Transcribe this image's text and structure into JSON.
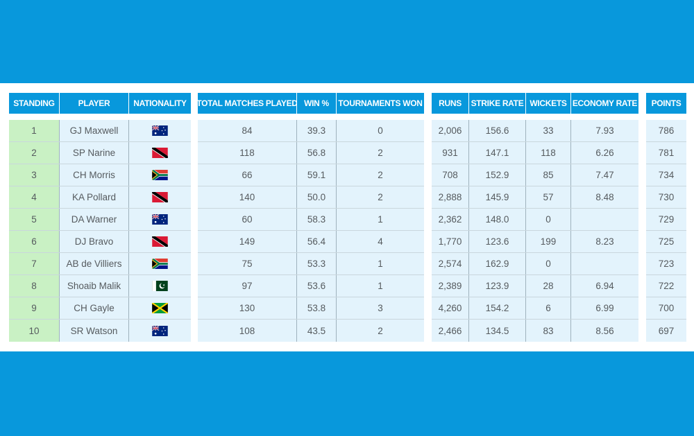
{
  "headers": {
    "standing": "STANDING",
    "player": "PLAYER",
    "nationality": "NATIONALITY",
    "matches": "TOTAL MATCHES PLAYED",
    "win": "WIN %",
    "tournaments": "TOURNAMENTS WON",
    "runs": "RUNS",
    "strike_rate": "STRIKE RATE",
    "wickets": "WICKETS",
    "economy": "ECONOMY RATE",
    "points": "POINTS"
  },
  "rows": [
    {
      "standing": "1",
      "player": "GJ Maxwell",
      "flag": "australia",
      "matches": "84",
      "win": "39.3",
      "tournaments": "0",
      "runs": "2,006",
      "strike_rate": "156.6",
      "wickets": "33",
      "economy": "7.93",
      "points": "786"
    },
    {
      "standing": "2",
      "player": "SP Narine",
      "flag": "trinidad-and-tobago",
      "matches": "118",
      "win": "56.8",
      "tournaments": "2",
      "runs": "931",
      "strike_rate": "147.1",
      "wickets": "118",
      "economy": "6.26",
      "points": "781"
    },
    {
      "standing": "3",
      "player": "CH Morris",
      "flag": "south-africa",
      "matches": "66",
      "win": "59.1",
      "tournaments": "2",
      "runs": "708",
      "strike_rate": "152.9",
      "wickets": "85",
      "economy": "7.47",
      "points": "734"
    },
    {
      "standing": "4",
      "player": "KA Pollard",
      "flag": "trinidad-and-tobago",
      "matches": "140",
      "win": "50.0",
      "tournaments": "2",
      "runs": "2,888",
      "strike_rate": "145.9",
      "wickets": "57",
      "economy": "8.48",
      "points": "730"
    },
    {
      "standing": "5",
      "player": "DA Warner",
      "flag": "australia",
      "matches": "60",
      "win": "58.3",
      "tournaments": "1",
      "runs": "2,362",
      "strike_rate": "148.0",
      "wickets": "0",
      "economy": "",
      "points": "729"
    },
    {
      "standing": "6",
      "player": "DJ Bravo",
      "flag": "trinidad-and-tobago",
      "matches": "149",
      "win": "56.4",
      "tournaments": "4",
      "runs": "1,770",
      "strike_rate": "123.6",
      "wickets": "199",
      "economy": "8.23",
      "points": "725"
    },
    {
      "standing": "7",
      "player": "AB de Villiers",
      "flag": "south-africa",
      "matches": "75",
      "win": "53.3",
      "tournaments": "1",
      "runs": "2,574",
      "strike_rate": "162.9",
      "wickets": "0",
      "economy": "",
      "points": "723"
    },
    {
      "standing": "8",
      "player": "Shoaib Malik",
      "flag": "pakistan",
      "matches": "97",
      "win": "53.6",
      "tournaments": "1",
      "runs": "2,389",
      "strike_rate": "123.9",
      "wickets": "28",
      "economy": "6.94",
      "points": "722"
    },
    {
      "standing": "9",
      "player": "CH Gayle",
      "flag": "jamaica",
      "matches": "130",
      "win": "53.8",
      "tournaments": "3",
      "runs": "4,260",
      "strike_rate": "154.2",
      "wickets": "6",
      "economy": "6.99",
      "points": "700"
    },
    {
      "standing": "10",
      "player": "SR Watson",
      "flag": "australia",
      "matches": "108",
      "win": "43.5",
      "tournaments": "2",
      "runs": "2,466",
      "strike_rate": "134.5",
      "wickets": "83",
      "economy": "8.56",
      "points": "697"
    }
  ],
  "colors": {
    "background": "#0898dc",
    "header": "#0898dc",
    "cell": "#e3f3fc",
    "standing_cell": "#c9f1c4"
  }
}
